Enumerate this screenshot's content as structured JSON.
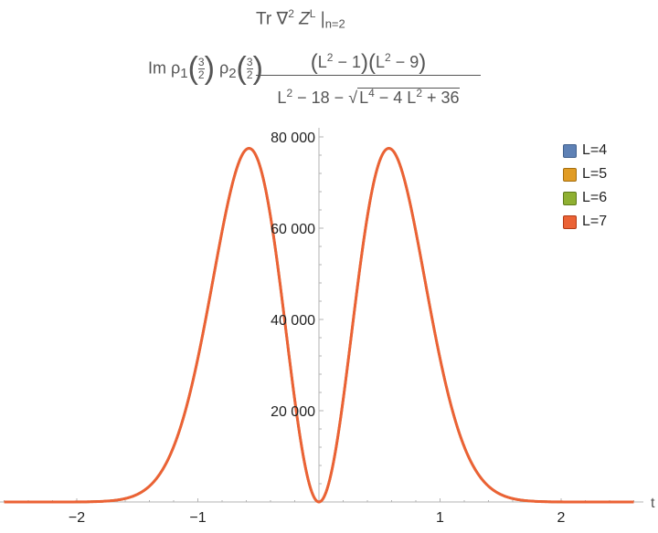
{
  "chart_data": {
    "type": "line",
    "title": {
      "line1_prefix": "Tr ∇",
      "line1_exp": "2",
      "line1_Z": " Z",
      "line1_Zexp": "L",
      "line1_bar": " |",
      "line1_sub": "n=2",
      "lhs_prefix": "Im ρ",
      "lhs_sub1": "1",
      "lhs_sub2": "2",
      "frac_num_top": "3",
      "frac_den_bottom": "2",
      "num_a": "L",
      "num_a_exp": "2",
      "num_a_rest": " − 1",
      "num_b": "L",
      "num_b_exp": "2",
      "num_b_rest": " − 9",
      "den_a": "L",
      "den_a_exp": "2",
      "den_a_rest": " − 18 − ",
      "den_s1": "L",
      "den_s1_exp": "4",
      "den_s2": " − 4 L",
      "den_s2_exp": "2",
      "den_s3": " + 36"
    },
    "xlabel": "t",
    "ylabel": "",
    "xlim": [
      -2.6,
      2.75
    ],
    "ylim": [
      0,
      80000
    ],
    "x_ticks": [
      -2,
      -1,
      1,
      2
    ],
    "x_tick_labels": [
      "−2",
      "−1",
      "1",
      "2"
    ],
    "y_ticks": [
      20000,
      40000,
      60000,
      80000
    ],
    "y_tick_labels": [
      "20 000",
      "40 000",
      "60 000",
      "80 000"
    ],
    "legend_position": "top-right",
    "series": [
      {
        "name": "L=4",
        "color": "#5e81b5",
        "fill": "#5e81b5",
        "stroke": "#42618d"
      },
      {
        "name": "L=5",
        "color": "#e19c24",
        "fill": "#e19c24",
        "stroke": "#a36e10"
      },
      {
        "name": "L=6",
        "color": "#8fb032",
        "fill": "#8fb032",
        "stroke": "#5e7a1a"
      },
      {
        "name": "L=7",
        "color": "#eb6235",
        "fill": "#eb6235",
        "stroke": "#b03a16"
      }
    ],
    "peak": {
      "x": 0.8,
      "y": 77500
    },
    "curve_samples_x": [
      -2.6,
      -2.4,
      -2.2,
      -2.0,
      -1.8,
      -1.6,
      -1.4,
      -1.2,
      -1.0,
      -0.8,
      -0.6,
      -0.4,
      -0.2,
      0,
      0.2,
      0.4,
      0.6,
      0.8,
      1.0,
      1.2,
      1.4,
      1.6,
      1.8,
      2.0,
      2.2,
      2.4,
      2.6
    ],
    "curve_samples_y": [
      80,
      250,
      900,
      2600,
      6500,
      13500,
      24500,
      39500,
      56000,
      77500,
      65000,
      38000,
      10500,
      0,
      10500,
      38000,
      65000,
      77500,
      56000,
      39500,
      24500,
      13500,
      6500,
      2600,
      900,
      250,
      80
    ]
  }
}
